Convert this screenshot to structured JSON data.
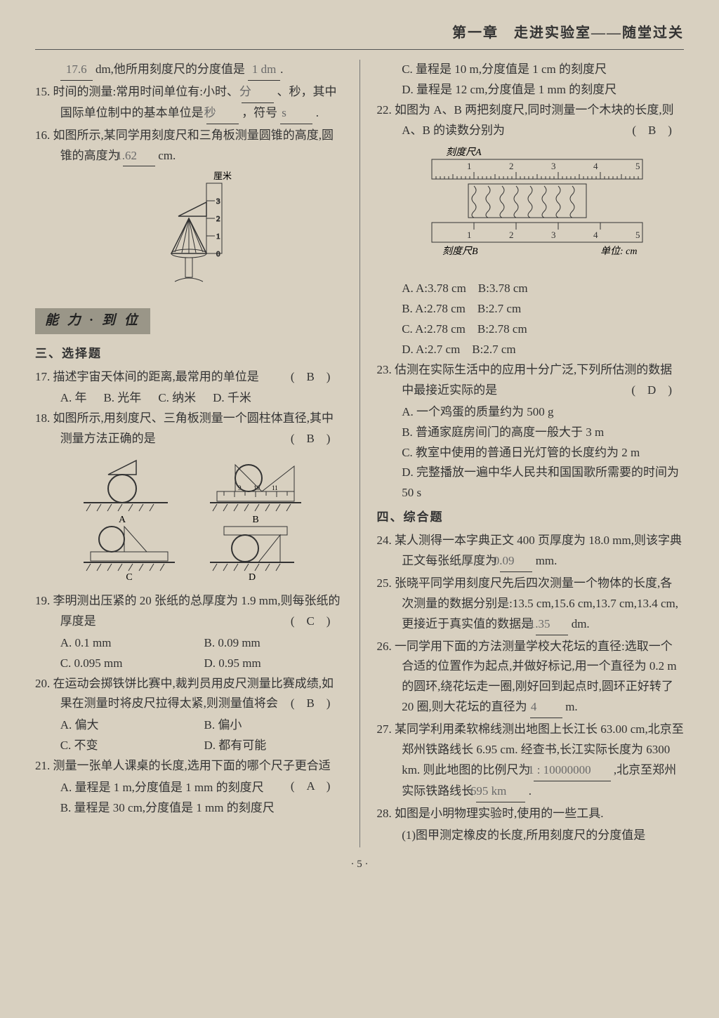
{
  "header": "第一章　走进实验室——随堂过关",
  "left": {
    "pre14": {
      "a": "17.6",
      "b": "1 dm",
      "tail": "dm,他所用刻度尺的分度值是"
    },
    "q15": {
      "text": "15. 时间的测量:常用时间单位有:小时、",
      "b1": "分",
      "mid": "、秒，其中国际单位制中的基本单位是",
      "b2": "秒",
      "mid2": "，符号",
      "b3": "s",
      "end": "."
    },
    "q16": {
      "text": "16. 如图所示,某同学用刻度尺和三角板测量圆锥的高度,圆锥的高度为",
      "b1": "1.62",
      "end": "cm."
    },
    "cone_label": "厘米",
    "badge": "能 力 · 到 位",
    "sec3": "三、选择题",
    "q17": {
      "text": "17. 描述宇宙天体间的距离,最常用的单位是",
      "ans": "(　B　)",
      "a": "A. 年",
      "b": "B. 光年",
      "c": "C. 纳米",
      "d": "D. 千米"
    },
    "q18": {
      "text": "18. 如图所示,用刻度尺、三角板测量一个圆柱体直径,其中测量方法正确的是",
      "ans": "(　B　)"
    },
    "q19": {
      "text": "19. 李明测出压紧的 20 张纸的总厚度为 1.9 mm,则每张纸的厚度是",
      "ans": "(　C　)",
      "a": "A. 0.1 mm",
      "b": "B. 0.09 mm",
      "c": "C. 0.095 mm",
      "d": "D. 0.95 mm"
    },
    "q20": {
      "text": "20. 在运动会掷铁饼比赛中,裁判员用皮尺测量比赛成绩,如果在测量时将皮尺拉得太紧,则测量值将会",
      "ans": "(　B　)",
      "a": "A. 偏大",
      "b": "B. 偏小",
      "c": "C. 不变",
      "d": "D. 都有可能"
    },
    "q21": {
      "text": "21. 测量一张单人课桌的长度,选用下面的哪个尺子更合适",
      "ans": "(　A　)",
      "a": "A. 量程是 1 m,分度值是 1 mm 的刻度尺",
      "b": "B. 量程是 30 cm,分度值是 1 mm 的刻度尺"
    }
  },
  "right": {
    "q21c": "C. 量程是 10 m,分度值是 1 cm 的刻度尺",
    "q21d": "D. 量程是 12 cm,分度值是 1 mm 的刻度尺",
    "q22": {
      "text": "22. 如图为 A、B 两把刻度尺,同时测量一个木块的长度,则 A、B 的读数分别为",
      "ans": "(　B　)",
      "rulerA": "刻度尺A",
      "rulerB": "刻度尺B",
      "unit": "单位: cm",
      "ticks": [
        "1",
        "2",
        "3",
        "4",
        "5"
      ],
      "a": "A. A:3.78 cm　B:3.78 cm",
      "b": "B. A:2.78 cm　B:2.7 cm",
      "c": "C. A:2.78 cm　B:2.78 cm",
      "d": "D. A:2.7 cm　B:2.7 cm"
    },
    "q23": {
      "text": "23. 估测在实际生活中的应用十分广泛,下列所估测的数据中最接近实际的是",
      "ans": "(　D　)",
      "a": "A. 一个鸡蛋的质量约为 500 g",
      "b": "B. 普通家庭房间门的高度一般大于 3 m",
      "c": "C. 教室中使用的普通日光灯管的长度约为 2 m",
      "d": "D. 完整播放一遍中华人民共和国国歌所需要的时间为 50 s"
    },
    "sec4": "四、综合题",
    "q24": {
      "text": "24. 某人测得一本字典正文 400 页厚度为 18.0 mm,则该字典正文每张纸厚度为",
      "b": "0.09",
      "end": "mm."
    },
    "q25": {
      "text": "25. 张晓平同学用刻度尺先后四次测量一个物体的长度,各次测量的数据分别是:13.5 cm,15.6 cm,13.7 cm,13.4 cm,更接近于真实值的数据是",
      "b": "1.35",
      "end": "dm."
    },
    "q26": {
      "text": "26. 一同学用下面的方法测量学校大花坛的直径:选取一个合适的位置作为起点,并做好标记,用一个直径为 0.2 m 的圆环,绕花坛走一圈,刚好回到起点时,圆环正好转了 20 圈,则大花坛的直径为",
      "b": "4",
      "end": "m."
    },
    "q27": {
      "text": "27. 某同学利用柔软棉线测出地图上长江长 63.00 cm,北京至郑州铁路线长 6.95 cm. 经查书,长江实际长度为 6300 km. 则此地图的比例尺为",
      "b1": "1 : 10000000",
      "mid": ",北京至郑州实际铁路线长",
      "b2": "695 km",
      "end": "."
    },
    "q28": {
      "text": "28. 如图是小明物理实验时,使用的一些工具.",
      "sub": "(1)图甲测定橡皮的长度,所用刻度尺的分度值是"
    }
  },
  "pagenum": "· 5 ·",
  "fig18labels": {
    "a": "A",
    "b": "B",
    "c": "C",
    "d": "D"
  },
  "fig18ticks": [
    "9",
    "10",
    "11"
  ],
  "cone_ticks": [
    "0",
    "1",
    "2",
    "3"
  ]
}
